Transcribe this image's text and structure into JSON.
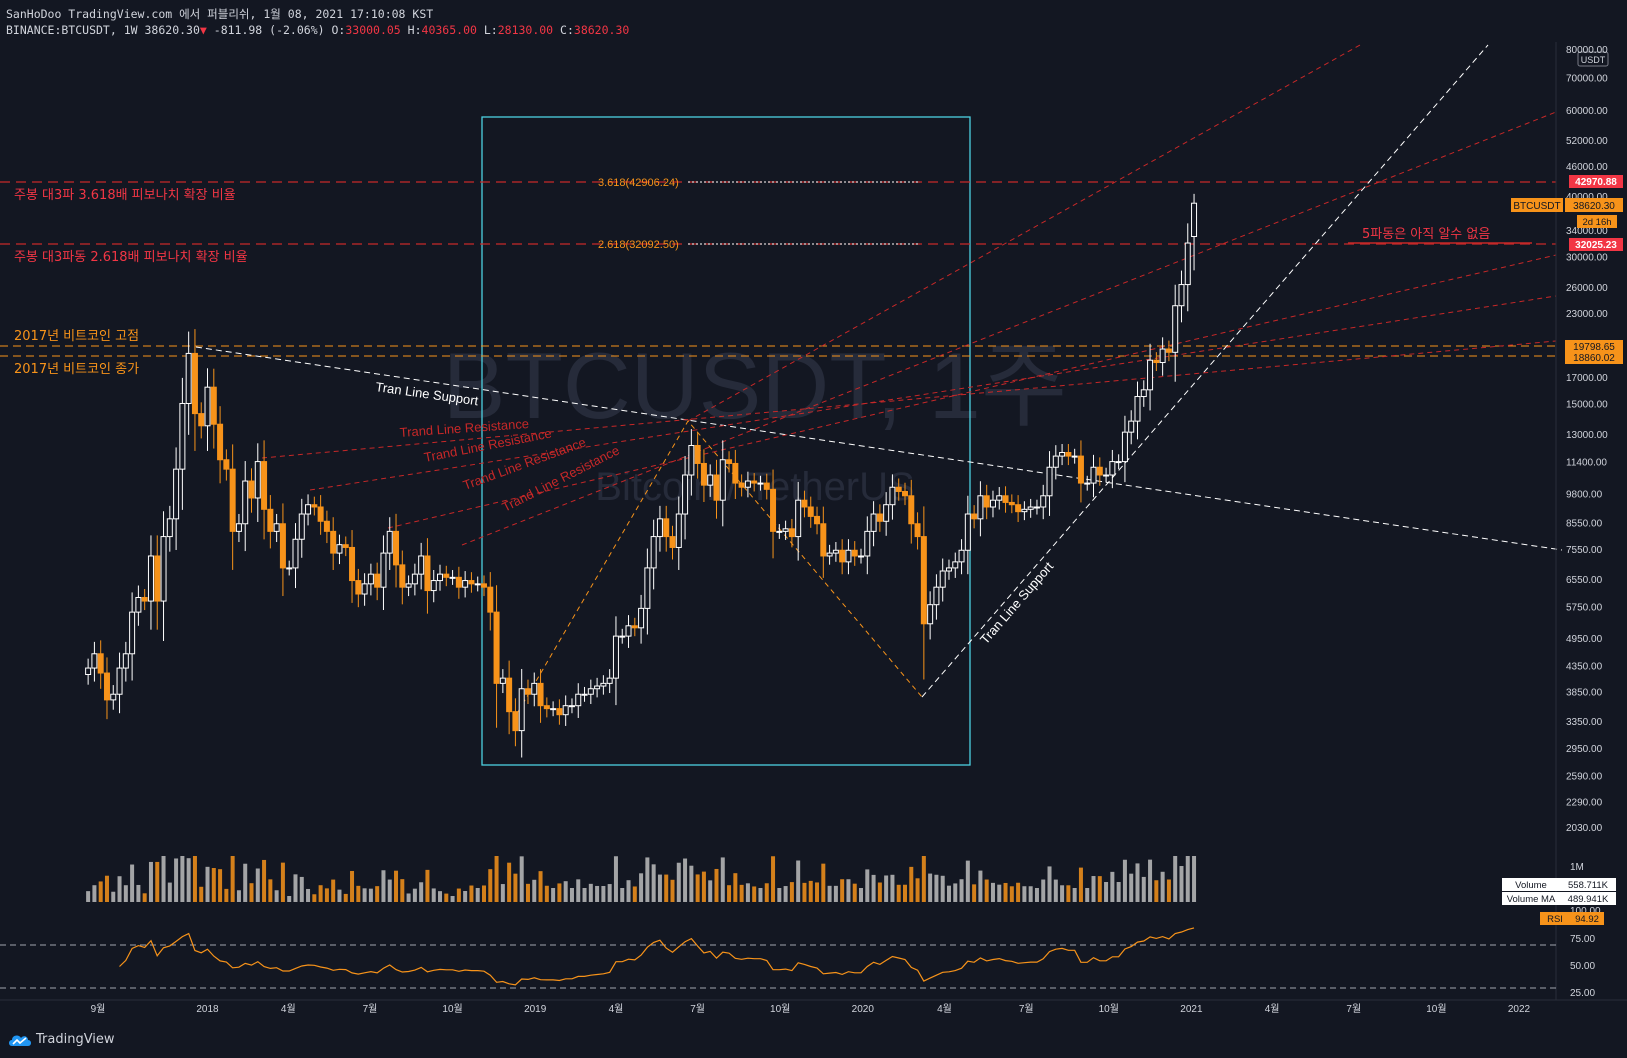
{
  "header": {
    "line1": "SanHoDoo TradingView.com 에서 퍼블리쉬, 1월 08, 2021 17:10:08 KST",
    "symbol": "BINANCE:BTCUSDT, 1W",
    "last": "38620.30",
    "change": "-811.98 (-2.06%)",
    "open_label": "O:",
    "open": "33000.05",
    "high_label": "H:",
    "high": "40365.00",
    "low_label": "L:",
    "low": "28130.00",
    "close_label": "C:",
    "close": "38620.30"
  },
  "watermark": {
    "main": "BTCUSDT, 1주",
    "sub": "Bitcoin / TetherUS"
  },
  "annotations": {
    "fib3618_note": "주봉 대3파 3.618배 피보나치 확장 비율",
    "fib2618_note": "주봉 대3파동 2.618배 피보나치 확장 비율",
    "high2017": "2017년 비트코인 고점",
    "close2017": "2017년 비트코인 종가",
    "wave5": "5파동은 아직 알수 없음",
    "fib3618": "3.618(42906.24)",
    "fib2618": "2.618(32092.50)",
    "support_top": "Tran Line Support",
    "support_bottom": "Tran Line Support",
    "resistance": [
      "Trand Line Resistance",
      "Trand Line Resistance",
      "Trand Line Resistance",
      "Trand Line Resistance"
    ]
  },
  "price_axis": {
    "currency": "USDT",
    "ticks": [
      "80000.00",
      "70000.00",
      "60000.00",
      "52000.00",
      "46000.00",
      "40000.00",
      "34000.00",
      "30000.00",
      "26000.00",
      "23000.00",
      "17000.00",
      "15000.00",
      "13000.00",
      "11400.00",
      "9800.00",
      "8550.00",
      "7550.00",
      "6550.00",
      "5750.00",
      "4950.00",
      "4350.00",
      "3850.00",
      "3350.00",
      "2950.00",
      "2590.00",
      "2290.00",
      "2030.00"
    ],
    "badges": {
      "level_4297": "42970.88",
      "symbol": "BTCUSDT",
      "price": "38620.30",
      "countdown": "2d 16h",
      "level_3202": "32025.23",
      "level_1979": "19798.65",
      "level_1886": "18860.02"
    }
  },
  "volume_panel": {
    "axis_top": "1M",
    "volume_label": "Volume",
    "volume_value": "558.711K",
    "ma_label": "Volume MA",
    "ma_value": "489.941K"
  },
  "rsi_panel": {
    "label": "RSI",
    "value": "94.92",
    "axis_top": "100.00",
    "ticks": [
      "75.00",
      "50.00",
      "25.00"
    ]
  },
  "time_axis": [
    "9월",
    "2018",
    "4월",
    "7월",
    "10월",
    "2019",
    "4월",
    "7월",
    "10월",
    "2020",
    "4월",
    "7월",
    "10월",
    "2021",
    "4월",
    "7월",
    "10월",
    "2022"
  ],
  "branding": "TradingView",
  "colors": {
    "bg": "#131722",
    "up": "#ffffff",
    "down": "#f7931a",
    "red": "#f23645",
    "orange": "#f7931a",
    "box": "#4dd0e1",
    "grid": "#2a2e39"
  },
  "chart_data": {
    "type": "candlestick",
    "interval": "1W",
    "symbol": "BINANCE:BTCUSDT",
    "x_range": [
      "2017-08",
      "2022-01"
    ],
    "y_scale": "log",
    "ylim": [
      2030,
      80000
    ],
    "key_levels": [
      {
        "label": "3.618(42906.24)",
        "value": 42970.88
      },
      {
        "label": "2.618(32092.50)",
        "value": 32025.23
      },
      {
        "label": "2017년 비트코인 고점",
        "value": 19798.65
      },
      {
        "label": "2017년 비트코인 종가",
        "value": 18860.02
      }
    ],
    "close_series": [
      [
        "2017-08-21",
        4300
      ],
      [
        "2017-08-28",
        4600
      ],
      [
        "2017-09-04",
        4200
      ],
      [
        "2017-09-11",
        3700
      ],
      [
        "2017-09-18",
        3800
      ],
      [
        "2017-09-25",
        4300
      ],
      [
        "2017-10-02",
        4600
      ],
      [
        "2017-10-09",
        5600
      ],
      [
        "2017-10-16",
        6000
      ],
      [
        "2017-10-23",
        5900
      ],
      [
        "2017-10-30",
        7300
      ],
      [
        "2017-11-06",
        5900
      ],
      [
        "2017-11-13",
        8000
      ],
      [
        "2017-11-20",
        8700
      ],
      [
        "2017-11-27",
        11000
      ],
      [
        "2017-12-04",
        15000
      ],
      [
        "2017-12-11",
        19000
      ],
      [
        "2017-12-18",
        14300
      ],
      [
        "2017-12-25",
        13500
      ],
      [
        "2018-01-01",
        16200
      ],
      [
        "2018-01-08",
        13600
      ],
      [
        "2018-01-15",
        11500
      ],
      [
        "2018-01-22",
        11000
      ],
      [
        "2018-01-29",
        8200
      ],
      [
        "2018-02-05",
        8500
      ],
      [
        "2018-02-12",
        10400
      ],
      [
        "2018-02-19",
        9600
      ],
      [
        "2018-02-26",
        11400
      ],
      [
        "2018-03-05",
        9100
      ],
      [
        "2018-03-12",
        8200
      ],
      [
        "2018-03-19",
        8500
      ],
      [
        "2018-03-26",
        6900
      ],
      [
        "2018-04-02",
        6900
      ],
      [
        "2018-04-09",
        7900
      ],
      [
        "2018-04-16",
        8900
      ],
      [
        "2018-04-23",
        9300
      ],
      [
        "2018-04-30",
        9200
      ],
      [
        "2018-05-07",
        8600
      ],
      [
        "2018-05-14",
        8200
      ],
      [
        "2018-05-21",
        7400
      ],
      [
        "2018-05-28",
        7700
      ],
      [
        "2018-06-04",
        7600
      ],
      [
        "2018-06-11",
        6500
      ],
      [
        "2018-06-18",
        6100
      ],
      [
        "2018-06-25",
        6400
      ],
      [
        "2018-07-02",
        6700
      ],
      [
        "2018-07-09",
        6300
      ],
      [
        "2018-07-16",
        7400
      ],
      [
        "2018-07-23",
        8200
      ],
      [
        "2018-07-30",
        7000
      ],
      [
        "2018-08-06",
        6300
      ],
      [
        "2018-08-13",
        6400
      ],
      [
        "2018-08-20",
        6700
      ],
      [
        "2018-08-27",
        7300
      ],
      [
        "2018-09-03",
        6200
      ],
      [
        "2018-09-10",
        6500
      ],
      [
        "2018-09-17",
        6700
      ],
      [
        "2018-09-24",
        6600
      ],
      [
        "2018-10-01",
        6600
      ],
      [
        "2018-10-08",
        6300
      ],
      [
        "2018-10-15",
        6500
      ],
      [
        "2018-10-22",
        6400
      ],
      [
        "2018-10-29",
        6400
      ],
      [
        "2018-11-05",
        6300
      ],
      [
        "2018-11-12",
        5600
      ],
      [
        "2018-11-19",
        4000
      ],
      [
        "2018-11-26",
        4100
      ],
      [
        "2018-12-03",
        3500
      ],
      [
        "2018-12-10",
        3200
      ],
      [
        "2018-12-17",
        3900
      ],
      [
        "2018-12-24",
        3800
      ],
      [
        "2018-12-31",
        4000
      ],
      [
        "2019-01-07",
        3600
      ],
      [
        "2019-01-14",
        3550
      ],
      [
        "2019-01-21",
        3550
      ],
      [
        "2019-01-28",
        3450
      ],
      [
        "2019-02-04",
        3600
      ],
      [
        "2019-02-11",
        3600
      ],
      [
        "2019-02-18",
        3800
      ],
      [
        "2019-02-25",
        3800
      ],
      [
        "2019-03-04",
        3900
      ],
      [
        "2019-03-11",
        3950
      ],
      [
        "2019-03-18",
        4000
      ],
      [
        "2019-03-25",
        4100
      ],
      [
        "2019-04-01",
        5000
      ],
      [
        "2019-04-08",
        5000
      ],
      [
        "2019-04-15",
        5250
      ],
      [
        "2019-04-22",
        5200
      ],
      [
        "2019-04-29",
        5700
      ],
      [
        "2019-05-06",
        6900
      ],
      [
        "2019-05-13",
        8000
      ],
      [
        "2019-05-20",
        8700
      ],
      [
        "2019-05-27",
        8000
      ],
      [
        "2019-06-03",
        7600
      ],
      [
        "2019-06-10",
        8900
      ],
      [
        "2019-06-17",
        10700
      ],
      [
        "2019-06-24",
        12300
      ],
      [
        "2019-07-01",
        11300
      ],
      [
        "2019-07-08",
        10200
      ],
      [
        "2019-07-15",
        10700
      ],
      [
        "2019-07-22",
        9500
      ],
      [
        "2019-07-29",
        11500
      ],
      [
        "2019-08-05",
        11300
      ],
      [
        "2019-08-12",
        10300
      ],
      [
        "2019-08-19",
        10100
      ],
      [
        "2019-08-26",
        10400
      ],
      [
        "2019-09-02",
        10300
      ],
      [
        "2019-09-09",
        10300
      ],
      [
        "2019-09-16",
        10000
      ],
      [
        "2019-09-23",
        8200
      ],
      [
        "2019-09-30",
        8200
      ],
      [
        "2019-10-07",
        8300
      ],
      [
        "2019-10-14",
        8000
      ],
      [
        "2019-10-21",
        9500
      ],
      [
        "2019-10-28",
        9200
      ],
      [
        "2019-11-04",
        8800
      ],
      [
        "2019-11-11",
        8500
      ],
      [
        "2019-11-18",
        7300
      ],
      [
        "2019-11-25",
        7400
      ],
      [
        "2019-12-02",
        7500
      ],
      [
        "2019-12-09",
        7100
      ],
      [
        "2019-12-16",
        7500
      ],
      [
        "2019-12-23",
        7300
      ],
      [
        "2019-12-30",
        7300
      ],
      [
        "2020-01-06",
        8200
      ],
      [
        "2020-01-13",
        8900
      ],
      [
        "2020-01-20",
        8600
      ],
      [
        "2020-01-27",
        9300
      ],
      [
        "2020-02-03",
        10100
      ],
      [
        "2020-02-10",
        9900
      ],
      [
        "2020-02-17",
        9700
      ],
      [
        "2020-02-24",
        8500
      ],
      [
        "2020-03-02",
        8000
      ],
      [
        "2020-03-09",
        5300
      ],
      [
        "2020-03-16",
        5800
      ],
      [
        "2020-03-23",
        6300
      ],
      [
        "2020-03-30",
        6800
      ],
      [
        "2020-04-06",
        6900
      ],
      [
        "2020-04-13",
        7100
      ],
      [
        "2020-04-20",
        7500
      ],
      [
        "2020-04-27",
        8900
      ],
      [
        "2020-05-04",
        8700
      ],
      [
        "2020-05-11",
        9700
      ],
      [
        "2020-05-18",
        9200
      ],
      [
        "2020-05-25",
        9500
      ],
      [
        "2020-06-01",
        9700
      ],
      [
        "2020-06-08",
        9400
      ],
      [
        "2020-06-15",
        9300
      ],
      [
        "2020-06-22",
        9000
      ],
      [
        "2020-06-29",
        9100
      ],
      [
        "2020-07-06",
        9200
      ],
      [
        "2020-07-13",
        9200
      ],
      [
        "2020-07-20",
        9700
      ],
      [
        "2020-07-27",
        11100
      ],
      [
        "2020-08-03",
        11700
      ],
      [
        "2020-08-10",
        11900
      ],
      [
        "2020-08-17",
        11700
      ],
      [
        "2020-08-24",
        11700
      ],
      [
        "2020-08-31",
        10300
      ],
      [
        "2020-09-07",
        10300
      ],
      [
        "2020-09-14",
        11100
      ],
      [
        "2020-09-21",
        10700
      ],
      [
        "2020-09-28",
        10700
      ],
      [
        "2020-10-05",
        11400
      ],
      [
        "2020-10-12",
        11400
      ],
      [
        "2020-10-19",
        13100
      ],
      [
        "2020-10-26",
        13800
      ],
      [
        "2020-11-02",
        15500
      ],
      [
        "2020-11-09",
        16000
      ],
      [
        "2020-11-16",
        18400
      ],
      [
        "2020-11-23",
        18200
      ],
      [
        "2020-11-30",
        19400
      ],
      [
        "2020-12-07",
        19100
      ],
      [
        "2020-12-14",
        23800
      ],
      [
        "2020-12-21",
        26300
      ],
      [
        "2020-12-28",
        32000
      ],
      [
        "2021-01-04",
        38620.3
      ]
    ],
    "current_bar": {
      "open": 33000.05,
      "high": 40365.0,
      "low": 28130.0,
      "close": 38620.3,
      "change": -811.98,
      "change_pct": -2.06
    },
    "volume": {
      "last": "558.711K",
      "ma": "489.941K"
    },
    "rsi": {
      "last": 94.92,
      "levels": [
        70,
        30
      ]
    }
  }
}
